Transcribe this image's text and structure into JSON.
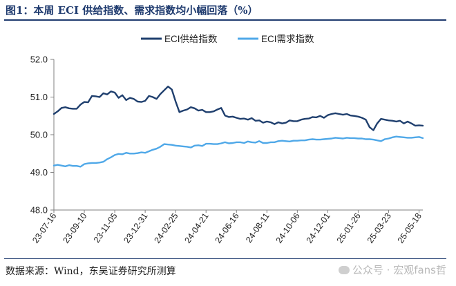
{
  "figure": {
    "title": "图1：本周 ECI 供给指数、需求指数均小幅回落（%）",
    "source": "数据来源：Wind，东吴证券研究所测算",
    "watermark": "公众号 · 宏观fans哲"
  },
  "chart_data": {
    "type": "line",
    "title": "图1：本周 ECI 供给指数、需求指数均小幅回落（%）",
    "xlabel": "",
    "ylabel": "",
    "ylim": [
      48.0,
      52.0
    ],
    "yticks": [
      "52.0",
      "51.0",
      "50.0",
      "49.0",
      "48.0"
    ],
    "xtick_labels": [
      "23-07-16",
      "23-09-10",
      "23-11-05",
      "23-12-31",
      "24-02-25",
      "24-04-21",
      "24-06-16",
      "24-08-11",
      "24-10-06",
      "24-12-01",
      "25-01-26",
      "25-03-23",
      "25-05-18"
    ],
    "x": [
      "23-07-16",
      "23-07-23",
      "23-07-30",
      "23-08-06",
      "23-08-13",
      "23-08-20",
      "23-08-27",
      "23-09-03",
      "23-09-10",
      "23-09-17",
      "23-09-24",
      "23-10-01",
      "23-10-08",
      "23-10-15",
      "23-10-22",
      "23-10-29",
      "23-11-05",
      "23-11-12",
      "23-11-19",
      "23-11-26",
      "23-12-03",
      "23-12-10",
      "23-12-17",
      "23-12-24",
      "23-12-31",
      "24-01-07",
      "24-01-14",
      "24-01-21",
      "24-01-28",
      "24-02-04",
      "24-02-11",
      "24-02-18",
      "24-02-25",
      "24-03-03",
      "24-03-10",
      "24-03-17",
      "24-03-24",
      "24-03-31",
      "24-04-07",
      "24-04-14",
      "24-04-21",
      "24-04-28",
      "24-05-05",
      "24-05-12",
      "24-05-19",
      "24-05-26",
      "24-06-02",
      "24-06-09",
      "24-06-16",
      "24-06-23",
      "24-06-30",
      "24-07-07",
      "24-07-14",
      "24-07-21",
      "24-07-28",
      "24-08-04",
      "24-08-11",
      "24-08-18",
      "24-08-25",
      "24-09-01",
      "24-09-08",
      "24-09-15",
      "24-09-22",
      "24-09-29",
      "24-10-06",
      "24-10-13",
      "24-10-20",
      "24-10-27",
      "24-11-03",
      "24-11-10",
      "24-11-17",
      "24-11-24",
      "24-12-01",
      "24-12-08",
      "24-12-15",
      "24-12-22",
      "24-12-29",
      "25-01-05",
      "25-01-12",
      "25-01-19",
      "25-01-26",
      "25-02-02",
      "25-02-09",
      "25-02-16",
      "25-02-23",
      "25-03-02",
      "25-03-09",
      "25-03-16",
      "25-03-23",
      "25-03-30",
      "25-04-06",
      "25-04-13",
      "25-04-20",
      "25-04-27",
      "25-05-04",
      "25-05-11",
      "25-05-18",
      "25-05-25"
    ],
    "series": [
      {
        "name": "ECI供给指数",
        "color": "#1f3f6e",
        "values": [
          50.55,
          50.62,
          50.71,
          50.73,
          50.7,
          50.69,
          50.69,
          50.8,
          50.87,
          50.86,
          51.03,
          51.02,
          51.0,
          51.1,
          51.07,
          51.15,
          51.12,
          50.98,
          51.05,
          50.92,
          50.98,
          50.95,
          50.88,
          50.87,
          50.9,
          51.03,
          51.0,
          50.95,
          51.08,
          51.18,
          51.28,
          51.2,
          50.88,
          50.6,
          50.64,
          50.67,
          50.73,
          50.7,
          50.64,
          50.66,
          50.6,
          50.6,
          50.62,
          50.67,
          50.71,
          50.51,
          50.47,
          50.48,
          50.45,
          50.42,
          50.43,
          50.4,
          50.44,
          50.37,
          50.38,
          50.32,
          50.35,
          50.33,
          50.28,
          50.33,
          50.3,
          50.32,
          50.38,
          50.36,
          50.36,
          50.4,
          50.42,
          50.43,
          50.47,
          50.46,
          50.5,
          50.45,
          50.52,
          50.55,
          50.57,
          50.55,
          50.53,
          50.55,
          50.51,
          50.5,
          50.48,
          50.45,
          50.4,
          50.2,
          50.12,
          50.3,
          50.42,
          50.4,
          50.38,
          50.37,
          50.35,
          50.37,
          50.3,
          50.35,
          50.3,
          50.24,
          50.25,
          50.24
        ]
      },
      {
        "name": "ECI需求指数",
        "color": "#4fa8e8",
        "values": [
          49.18,
          49.2,
          49.18,
          49.16,
          49.19,
          49.17,
          49.17,
          49.15,
          49.22,
          49.24,
          49.25,
          49.25,
          49.26,
          49.28,
          49.35,
          49.4,
          49.46,
          49.49,
          49.48,
          49.52,
          49.5,
          49.5,
          49.51,
          49.53,
          49.52,
          49.56,
          49.6,
          49.63,
          49.68,
          49.75,
          49.74,
          49.73,
          49.71,
          49.7,
          49.69,
          49.68,
          49.66,
          49.71,
          49.72,
          49.7,
          49.76,
          49.76,
          49.75,
          49.75,
          49.77,
          49.8,
          49.77,
          49.78,
          49.8,
          49.8,
          49.78,
          49.82,
          49.8,
          49.79,
          49.83,
          49.78,
          49.78,
          49.8,
          49.8,
          49.83,
          49.84,
          49.83,
          49.82,
          49.84,
          49.84,
          49.85,
          49.85,
          49.87,
          49.88,
          49.87,
          49.87,
          49.88,
          49.89,
          49.9,
          49.92,
          49.91,
          49.9,
          49.92,
          49.91,
          49.91,
          49.9,
          49.9,
          49.88,
          49.88,
          49.87,
          49.85,
          49.83,
          49.88,
          49.9,
          49.93,
          49.95,
          49.94,
          49.93,
          49.92,
          49.92,
          49.93,
          49.94,
          49.91
        ]
      }
    ],
    "legend": "top-center",
    "grid": false
  }
}
